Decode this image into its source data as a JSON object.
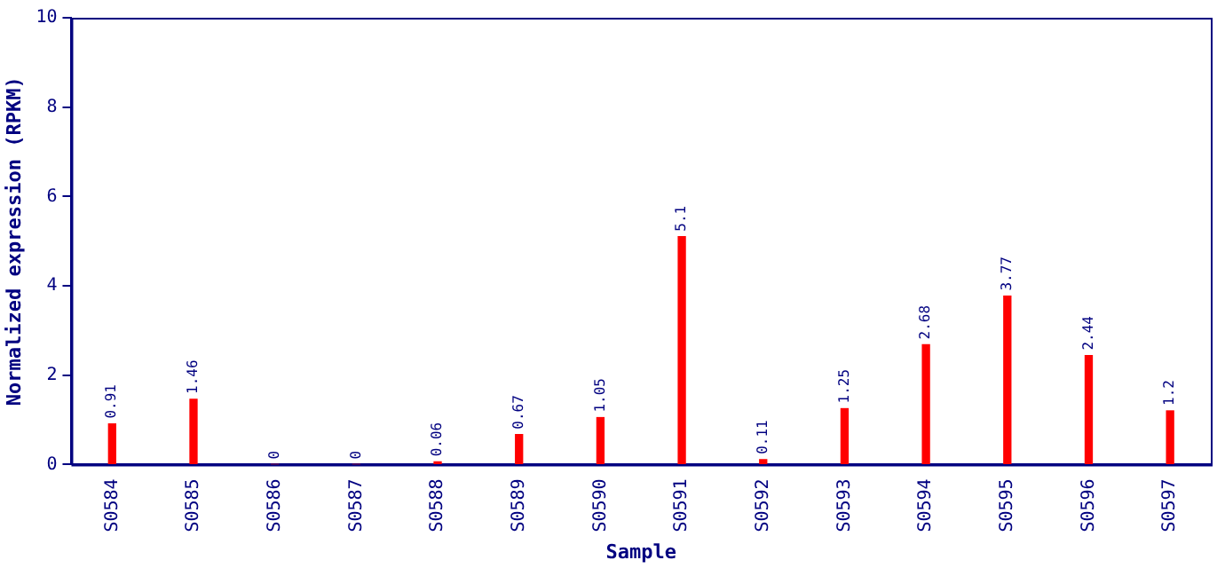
{
  "chart_data": {
    "type": "bar",
    "xlabel": "Sample",
    "ylabel": "Normalized expression (RPKM)",
    "categories": [
      "S0584",
      "S0585",
      "S0586",
      "S0587",
      "S0588",
      "S0589",
      "S0590",
      "S0591",
      "S0592",
      "S0593",
      "S0594",
      "S0595",
      "S0596",
      "S0597"
    ],
    "values": [
      0.91,
      1.46,
      0,
      0,
      0.06,
      0.67,
      1.05,
      5.1,
      0.11,
      1.25,
      2.68,
      3.77,
      2.44,
      1.2
    ],
    "color": "#ff0000",
    "ylim": [
      0,
      10
    ],
    "yticks": [
      0,
      2,
      4,
      6,
      8,
      10
    ],
    "grid": false,
    "legend": false,
    "data_labels": true
  }
}
